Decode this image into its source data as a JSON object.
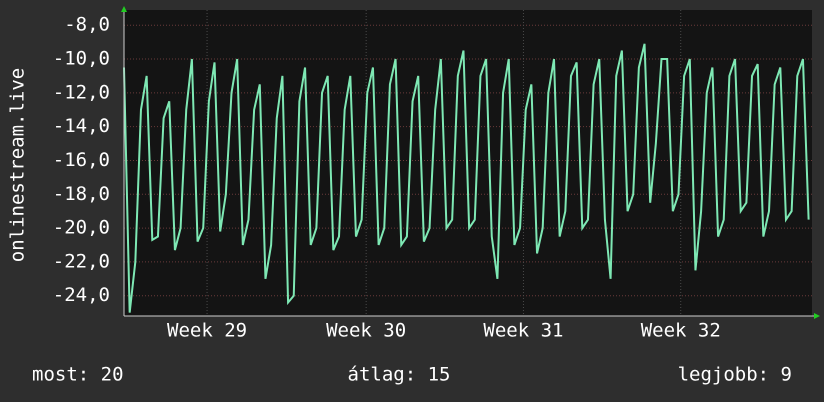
{
  "chart_data": {
    "type": "line",
    "ylabel": "onlinestream.live",
    "ylim": [
      -25.2,
      -7.1
    ],
    "yticks": [
      {
        "value": -8,
        "label": "-8,0"
      },
      {
        "value": -10,
        "label": "-10,0"
      },
      {
        "value": -12,
        "label": "-12,0"
      },
      {
        "value": -14,
        "label": "-14,0"
      },
      {
        "value": -16,
        "label": "-16,0"
      },
      {
        "value": -18,
        "label": "-18,0"
      },
      {
        "value": -20,
        "label": "-20,0"
      },
      {
        "value": -22,
        "label": "-22,0"
      },
      {
        "value": -24,
        "label": "-24,0"
      }
    ],
    "xlim": [
      0,
      30.4
    ],
    "xticks": [
      {
        "value": 3.67,
        "label": "Week 29"
      },
      {
        "value": 10.7,
        "label": "Week 30"
      },
      {
        "value": 17.65,
        "label": "Week 31"
      },
      {
        "value": 24.6,
        "label": "Week 32"
      }
    ],
    "grid": true,
    "x": [
      0,
      0.25,
      0.5,
      0.75,
      1,
      1.25,
      1.5,
      1.75,
      2,
      2.25,
      2.5,
      2.75,
      3,
      3.25,
      3.5,
      3.75,
      4,
      4.25,
      4.5,
      4.75,
      5,
      5.25,
      5.5,
      5.75,
      6,
      6.25,
      6.5,
      6.75,
      7,
      7.25,
      7.5,
      7.75,
      8,
      8.25,
      8.5,
      8.75,
      9,
      9.25,
      9.5,
      9.75,
      10,
      10.25,
      10.5,
      10.75,
      11,
      11.25,
      11.5,
      11.75,
      12,
      12.25,
      12.5,
      12.75,
      13,
      13.25,
      13.5,
      13.75,
      14,
      14.25,
      14.5,
      14.75,
      15,
      15.25,
      15.5,
      15.75,
      16,
      16.25,
      16.5,
      16.75,
      17,
      17.25,
      17.5,
      17.75,
      18,
      18.25,
      18.5,
      18.75,
      19,
      19.25,
      19.5,
      19.75,
      20,
      20.25,
      20.5,
      20.75,
      21,
      21.25,
      21.5,
      21.75,
      22,
      22.25,
      22.5,
      22.75,
      23,
      23.25,
      23.5,
      23.75,
      24,
      24.25,
      24.5,
      24.75,
      25,
      25.25,
      25.5,
      25.75,
      26,
      26.25,
      26.5,
      26.75,
      27,
      27.25,
      27.5,
      27.75,
      28,
      28.25,
      28.5,
      28.75,
      29,
      29.25,
      29.5,
      29.75,
      30,
      30.25
    ],
    "series": [
      {
        "name": "onlinestream.live",
        "color": "#7ee8b4",
        "values": [
          -10.5,
          -25.0,
          -22.0,
          -13.0,
          -11.0,
          -20.7,
          -20.5,
          -13.5,
          -12.5,
          -21.3,
          -20.0,
          -13.0,
          -10.0,
          -20.8,
          -20.0,
          -12.5,
          -10.2,
          -20.2,
          -18.0,
          -12.0,
          -10.0,
          -21.0,
          -19.5,
          -13.0,
          -11.5,
          -23.0,
          -21.0,
          -13.5,
          -11.0,
          -24.4,
          -24.0,
          -12.5,
          -10.5,
          -21.0,
          -20.0,
          -12.0,
          -11.0,
          -21.3,
          -20.5,
          -13.0,
          -11.0,
          -20.5,
          -19.5,
          -12.0,
          -10.5,
          -21.0,
          -20.0,
          -11.5,
          -10.0,
          -21.0,
          -20.5,
          -12.5,
          -11.0,
          -20.8,
          -20.0,
          -13.0,
          -10.0,
          -20.0,
          -19.5,
          -11.0,
          -9.5,
          -20.0,
          -19.5,
          -11.0,
          -10.0,
          -20.5,
          -23.0,
          -12.0,
          -10.0,
          -21.0,
          -20.0,
          -13.0,
          -11.5,
          -21.5,
          -20.0,
          -12.0,
          -10.0,
          -20.5,
          -19.0,
          -11.0,
          -10.2,
          -20.0,
          -19.5,
          -11.5,
          -10.0,
          -19.5,
          -23.0,
          -11.0,
          -9.5,
          -19.0,
          -18.0,
          -10.5,
          -9.1,
          -18.5,
          -15.0,
          -10.0,
          -10.0,
          -19.0,
          -18.0,
          -11.0,
          -10.0,
          -22.5,
          -19.0,
          -12.0,
          -10.5,
          -20.5,
          -19.5,
          -11.0,
          -10.0,
          -19.0,
          -18.5,
          -11.0,
          -10.3,
          -20.5,
          -19.0,
          -11.5,
          -10.5,
          -19.5,
          -19.0,
          -11.0,
          -10.0,
          -19.5
        ]
      }
    ],
    "stats": [
      "most: 20",
      "átlag: 15",
      "legjobb: 9"
    ]
  }
}
